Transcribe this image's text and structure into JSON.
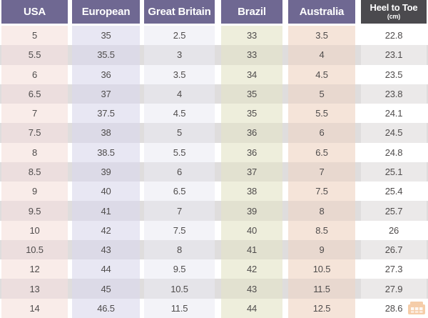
{
  "table": {
    "headers": [
      {
        "label": "USA"
      },
      {
        "label": "European"
      },
      {
        "label": "Great Britain"
      },
      {
        "label": "Brazil"
      },
      {
        "label": "Australia"
      },
      {
        "label": "Heel to Toe",
        "sublabel": "(cm)"
      }
    ],
    "rows": [
      [
        "5",
        "35",
        "2.5",
        "33",
        "3.5",
        "22.8"
      ],
      [
        "5.5",
        "35.5",
        "3",
        "33",
        "4",
        "23.1"
      ],
      [
        "6",
        "36",
        "3.5",
        "34",
        "4.5",
        "23.5"
      ],
      [
        "6.5",
        "37",
        "4",
        "35",
        "5",
        "23.8"
      ],
      [
        "7",
        "37.5",
        "4.5",
        "35",
        "5.5",
        "24.1"
      ],
      [
        "7.5",
        "38",
        "5",
        "36",
        "6",
        "24.5"
      ],
      [
        "8",
        "38.5",
        "5.5",
        "36",
        "6.5",
        "24.8"
      ],
      [
        "8.5",
        "39",
        "6",
        "37",
        "7",
        "25.1"
      ],
      [
        "9",
        "40",
        "6.5",
        "38",
        "7.5",
        "25.4"
      ],
      [
        "9.5",
        "41",
        "7",
        "39",
        "8",
        "25.7"
      ],
      [
        "10",
        "42",
        "7.5",
        "40",
        "8.5",
        "26"
      ],
      [
        "10.5",
        "43",
        "8",
        "41",
        "9",
        "26.7"
      ],
      [
        "12",
        "44",
        "9.5",
        "42",
        "10.5",
        "27.3"
      ],
      [
        "13",
        "45",
        "10.5",
        "43",
        "11.5",
        "27.9"
      ],
      [
        "14",
        "46.5",
        "11.5",
        "44",
        "12.5",
        "28.6"
      ]
    ]
  },
  "colors": {
    "header_bg": "#6f6892",
    "header_text": "#ffffff",
    "header_last_bg": "#4b4a4e",
    "text": "#4f4c4c",
    "row_stripe": "#dfdddd",
    "watermark": "#e8832a",
    "columns": [
      {
        "odd": "#f9ece9",
        "even": "#ecdede"
      },
      {
        "odd": "#e8e7f3",
        "even": "#dcdae7"
      },
      {
        "odd": "#f3f3f8",
        "even": "#e5e4e9"
      },
      {
        "odd": "#eeeedc",
        "even": "#e2e1d0"
      },
      {
        "odd": "#f5e4d9",
        "even": "#e8d8cf"
      },
      {
        "odd": "#ffffff",
        "even": "#ebe9e9"
      }
    ]
  }
}
